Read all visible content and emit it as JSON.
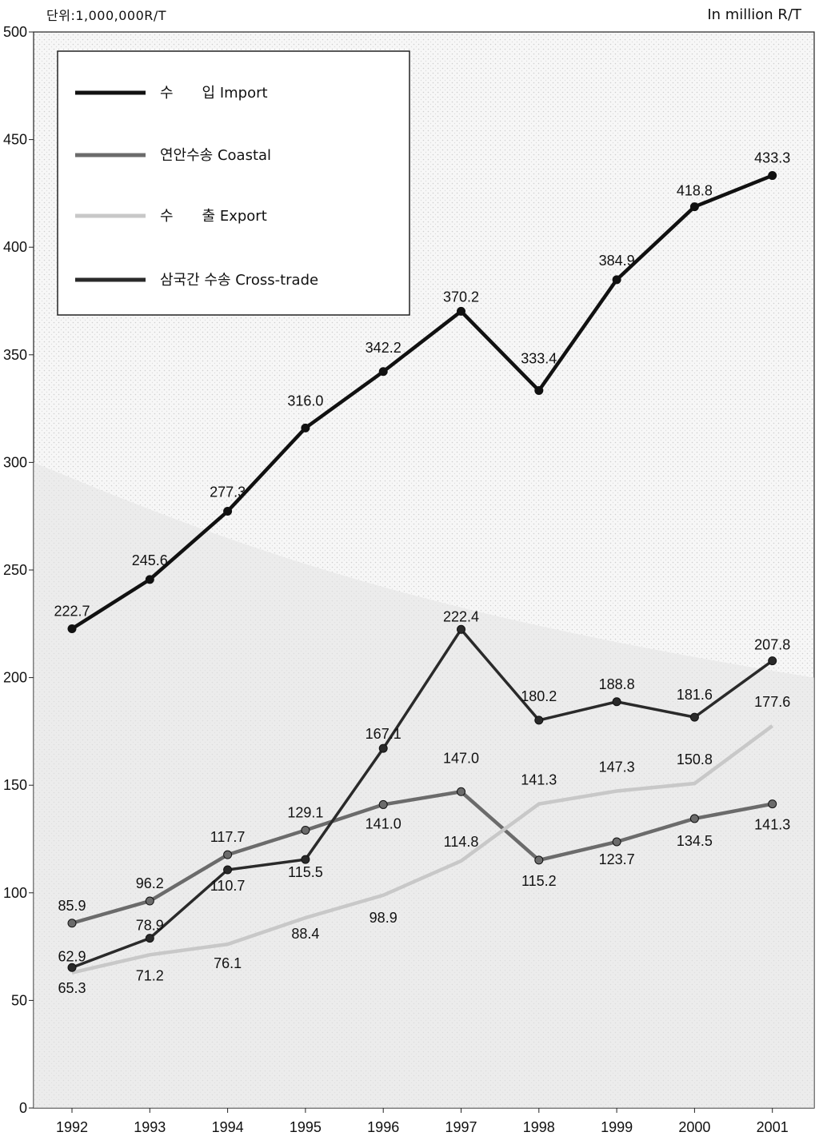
{
  "header": {
    "unit_ko": "단위:1,000,000R/T",
    "unit_en": "In million R/T"
  },
  "colors": {
    "import": "#111111",
    "coastal": "#6b6b6b",
    "export": "#c8c8c8",
    "cross_trade": "#2a2a2a",
    "background_texture": "#e4e4e4"
  },
  "chart_data": {
    "type": "line",
    "x": [
      "1992",
      "1993",
      "1994",
      "1995",
      "1996",
      "1997",
      "1998",
      "1999",
      "2000",
      "2001"
    ],
    "ylim": [
      0,
      500
    ],
    "yticks": [
      "0",
      "50",
      "100",
      "150",
      "200",
      "250",
      "300",
      "350",
      "400",
      "450",
      "500"
    ],
    "grid": false,
    "legend_position": "top-left",
    "series": [
      {
        "key": "import",
        "name": "수　　입  Import",
        "values": [
          222.7,
          245.6,
          277.3,
          316.0,
          342.2,
          370.2,
          333.4,
          384.9,
          418.8,
          433.3
        ],
        "labels": [
          "222.7",
          "245.6",
          "277.3",
          "316.0",
          "342.2",
          "370.2",
          "333.4",
          "384.9",
          "418.8",
          "433.3"
        ]
      },
      {
        "key": "coastal",
        "name": "연안수송  Coastal",
        "values": [
          85.9,
          96.2,
          117.7,
          129.1,
          141.0,
          147.0,
          115.2,
          123.7,
          134.5,
          141.3
        ],
        "labels": [
          "85.9",
          "96.2",
          "117.7",
          "129.1",
          "141.0",
          "147.0",
          "115.2",
          "123.7",
          "134.5",
          "141.3"
        ]
      },
      {
        "key": "export",
        "name": "수　　출  Export",
        "values": [
          62.9,
          71.2,
          76.1,
          88.4,
          98.9,
          114.8,
          141.3,
          147.3,
          150.8,
          177.6
        ],
        "labels": [
          "62.9",
          "71.2",
          "76.1",
          "88.4",
          "98.9",
          "114.8",
          "141.3",
          "147.3",
          "150.8",
          "177.6"
        ]
      },
      {
        "key": "cross_trade",
        "name": "삼국간 수송  Cross-trade",
        "values": [
          65.3,
          78.9,
          110.7,
          115.5,
          167.1,
          222.4,
          180.2,
          188.8,
          181.6,
          207.8
        ],
        "labels": [
          "65.3",
          "78.9",
          "110.7",
          "115.5",
          "167.1",
          "222.4",
          "180.2",
          "188.8",
          "181.6",
          "207.8"
        ]
      }
    ]
  }
}
